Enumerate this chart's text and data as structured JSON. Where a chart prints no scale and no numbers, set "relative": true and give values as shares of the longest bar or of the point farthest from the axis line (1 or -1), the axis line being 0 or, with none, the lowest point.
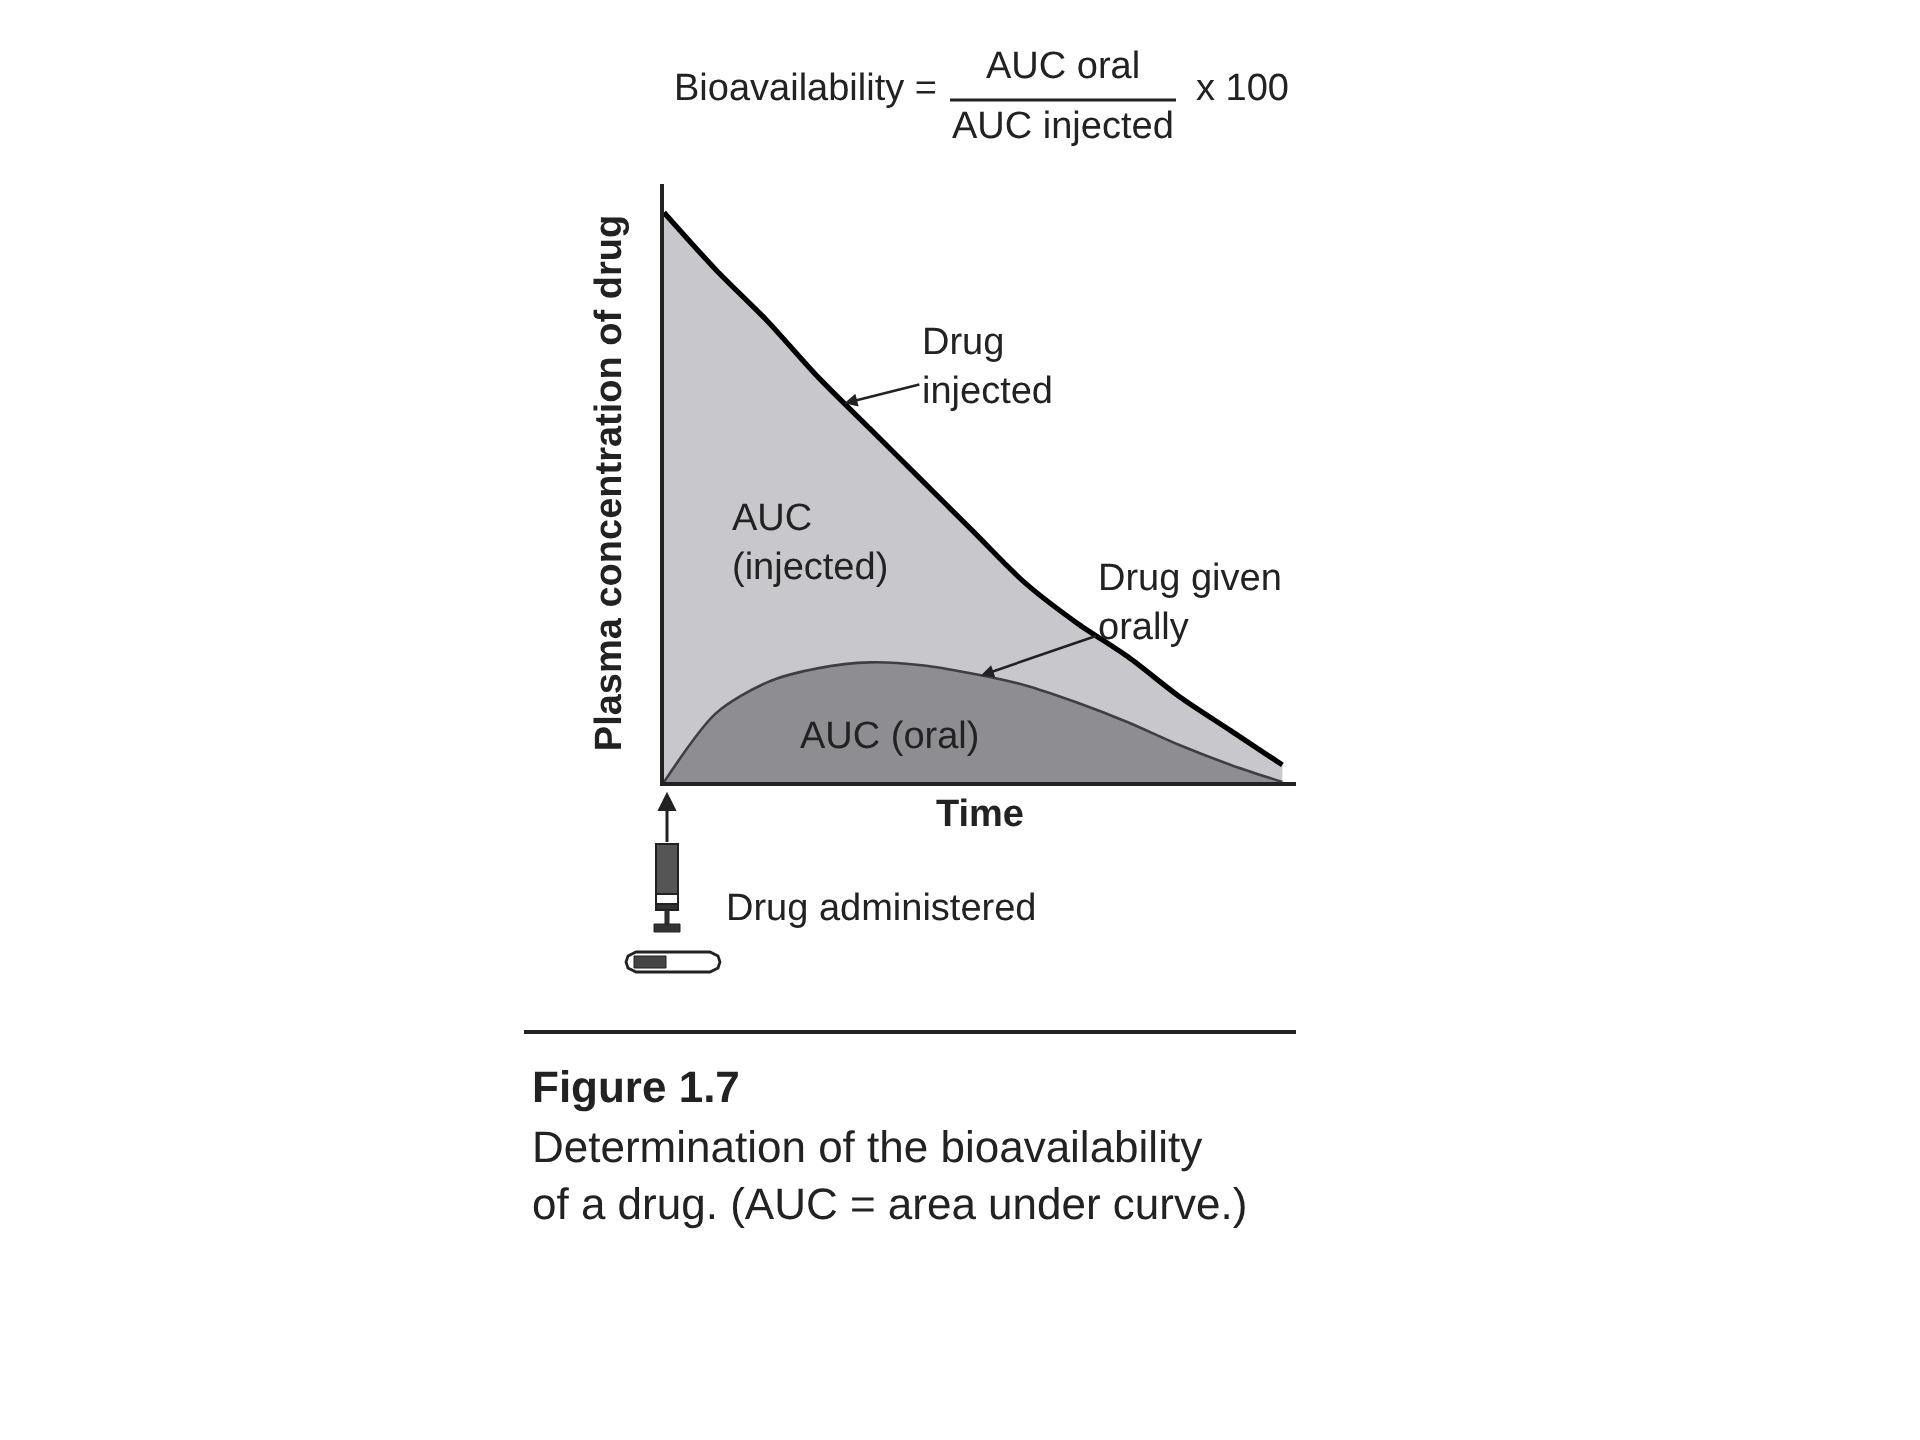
{
  "chart_data": {
    "type": "area",
    "relative": true,
    "xlabel": "Time",
    "ylabel": "Plasma concentration of drug",
    "categories": [
      null,
      null,
      null,
      null,
      null,
      null,
      null,
      null,
      null,
      null,
      null,
      null,
      null
    ],
    "series": [
      {
        "name": "Drug injected",
        "color": "#c8c8cc",
        "values": [
          1.0,
          0.9,
          0.81,
          0.71,
          0.62,
          0.53,
          0.44,
          0.35,
          0.28,
          0.22,
          0.15,
          0.09,
          0.03
        ]
      },
      {
        "name": "Drug given orally",
        "color": "#8e8e92",
        "values": [
          0,
          0.12,
          0.175,
          0.2,
          0.21,
          0.205,
          0.19,
          0.17,
          0.14,
          0.105,
          0.065,
          0.03,
          0
        ]
      }
    ],
    "annotations": [
      "Bioavailability =",
      "AUC oral",
      "AUC injected",
      "x 100",
      "AUC (injected)",
      "AUC (oral)",
      "Drug administered",
      "Figure 1.7",
      "Determination of the bioavailability of a drug. (AUC = area under curve.)"
    ]
  }
}
